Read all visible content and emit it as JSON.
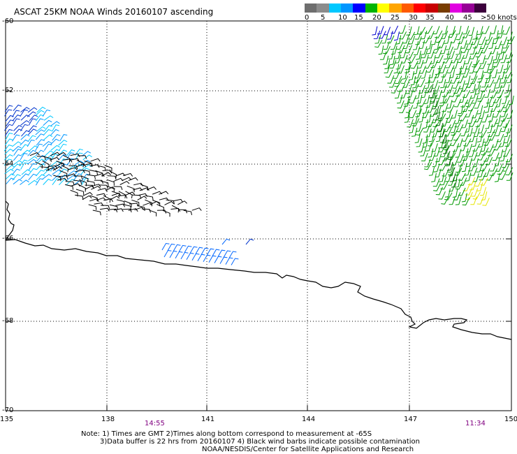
{
  "header": {
    "title": "ASCAT 25KM NOAA Winds 20160107 ascending"
  },
  "legend": {
    "labels": [
      "0",
      "5",
      "10",
      "15",
      "20",
      "25",
      "30",
      "35",
      "40",
      "45",
      ">50 knots"
    ],
    "colors": [
      "#6e6e6e",
      "#8c8c8c",
      "#00c8ff",
      "#0096ff",
      "#0000ff",
      "#00b400",
      "#ffff00",
      "#ffa500",
      "#ff5a00",
      "#ff0000",
      "#c80000",
      "#783c00",
      "#e100e1",
      "#960096",
      "#3c003c"
    ]
  },
  "axes": {
    "lat_labels": [
      "-60",
      "-62",
      "-64",
      "-66",
      "-68",
      "-70"
    ],
    "lon_labels": [
      "135",
      "138",
      "141",
      "144",
      "147",
      "150"
    ]
  },
  "pass_times": [
    "14:55",
    "11:34"
  ],
  "notes": [
    "Note: 1) Times are GMT 2)Times along bottom correspond to measurement at -65S",
    "3)Data buffer is 22 hrs from 20160107 4) Black wind barbs indicate possible contamination",
    "NOAA/NESDIS/Center for Satellite Applications and Research"
  ],
  "colors": {
    "pass_time_text": "#800080",
    "coastline": "#000000",
    "grid": "#000000"
  }
}
